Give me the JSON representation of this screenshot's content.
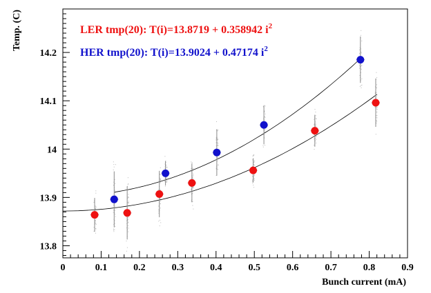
{
  "chart_data": {
    "type": "scatter",
    "xlabel": "Bunch current (mA)",
    "ylabel": "Temp. (C)",
    "xlim": [
      0,
      0.9
    ],
    "ylim": [
      13.775,
      14.29
    ],
    "x_ticks": [
      "0",
      "0.1",
      "0.2",
      "0.3",
      "0.4",
      "0.5",
      "0.6",
      "0.7",
      "0.8",
      "0.9"
    ],
    "y_ticks": [
      "13.8",
      "13.9",
      "14",
      "14.1",
      "14.2"
    ],
    "grid": false,
    "legend_position": "top-left",
    "annotations": [
      {
        "prefix": "LER tmp(20): T(i)=13.8719 + 0.358942 i",
        "sup": "2",
        "color": "#ee1111"
      },
      {
        "prefix": "HER tmp(20): T(i)=13.9024 + 0.47174 i",
        "sup": "2",
        "color": "#1111cc"
      }
    ],
    "series": [
      {
        "color": "#ee1111",
        "fit": {
          "a": 13.8719,
          "b": 0.358942,
          "x_from": 0.0,
          "x_to": 0.82
        },
        "points": [
          {
            "x": 0.083,
            "y": 13.864,
            "err": 0.035
          },
          {
            "x": 0.168,
            "y": 13.868,
            "err": 0.055
          },
          {
            "x": 0.252,
            "y": 13.907,
            "err": 0.048
          },
          {
            "x": 0.337,
            "y": 13.93,
            "err": 0.04
          },
          {
            "x": 0.497,
            "y": 13.956,
            "err": 0.025
          },
          {
            "x": 0.658,
            "y": 14.038,
            "err": 0.033
          },
          {
            "x": 0.817,
            "y": 14.096,
            "err": 0.05
          }
        ]
      },
      {
        "color": "#1111cc",
        "fit": {
          "a": 13.9024,
          "b": 0.47174,
          "x_from": 0.135,
          "x_to": 0.775
        },
        "points": [
          {
            "x": 0.134,
            "y": 13.896,
            "err": 0.058
          },
          {
            "x": 0.268,
            "y": 13.95,
            "err": 0.025
          },
          {
            "x": 0.402,
            "y": 13.993,
            "err": 0.048
          },
          {
            "x": 0.525,
            "y": 14.05,
            "err": 0.04
          },
          {
            "x": 0.777,
            "y": 14.185,
            "err": 0.048
          }
        ]
      }
    ]
  }
}
